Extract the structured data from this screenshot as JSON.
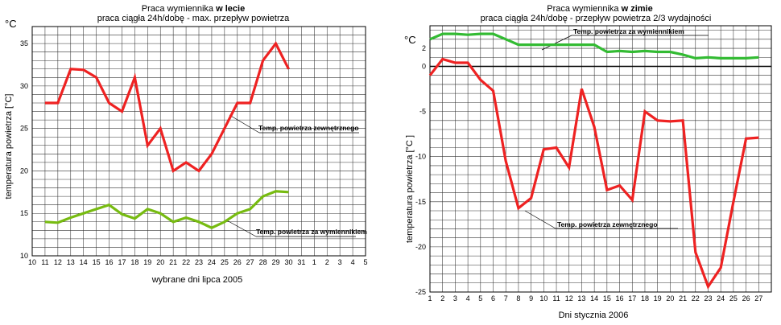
{
  "chart_data": [
    {
      "type": "line",
      "title_prefix": "Praca wymiennika ",
      "title_bold": "w lecie",
      "subtitle": "praca ciągła 24h/dobę - max. przepływ powietrza",
      "unit_label": "°C",
      "ylabel": "temperatura powietrza [°C]",
      "xlabel": "wybrane dni lipca 2005",
      "x_ticks": [
        "10",
        "11",
        "12",
        "13",
        "14",
        "15",
        "16",
        "17",
        "18",
        "19",
        "20",
        "21",
        "22",
        "23",
        "24",
        "25",
        "26",
        "27",
        "28",
        "29",
        "30",
        "31",
        "1",
        "2",
        "3",
        "4",
        "5"
      ],
      "y_ticks": [
        10,
        15,
        20,
        25,
        30,
        35
      ],
      "ylim": [
        10,
        37
      ],
      "grid": true,
      "series": [
        {
          "name": "Temp. powietrza zewnętrznego",
          "color": "#ee2222",
          "x": [
            11,
            12,
            13,
            14,
            15,
            16,
            17,
            18,
            19,
            20,
            21,
            22,
            23,
            24,
            25,
            26,
            27,
            28,
            29,
            30
          ],
          "values": [
            28,
            28,
            32,
            31.9,
            31,
            28,
            27,
            31,
            23,
            25,
            20,
            21,
            20,
            22,
            25,
            28,
            28,
            33,
            35,
            32
          ]
        },
        {
          "name": "Temp. powietrza za wymiennikiem",
          "color": "#77bb11",
          "x": [
            11,
            12,
            13,
            14,
            15,
            16,
            17,
            18,
            19,
            20,
            21,
            22,
            23,
            24,
            25,
            26,
            27,
            28,
            29,
            30
          ],
          "values": [
            14,
            13.9,
            14.5,
            15,
            15.5,
            16,
            14.9,
            14.4,
            15.5,
            15,
            14,
            14.5,
            14,
            13.3,
            14,
            15,
            15.5,
            17,
            17.6,
            17.5
          ]
        }
      ]
    },
    {
      "type": "line",
      "title_prefix": "Praca wymiennika ",
      "title_bold": "w zimie",
      "subtitle": "praca ciągła 24h/dobę - przepływ powietrza 2/3 wydajności",
      "unit_label": "°C",
      "ylabel": "temperatura powietrza [°C ]",
      "xlabel": "Dni stycznia 2006",
      "x_ticks": [
        "1",
        "2",
        "3",
        "4",
        "5",
        "6",
        "7",
        "8",
        "9",
        "10",
        "11",
        "12",
        "13",
        "14",
        "15",
        "16",
        "17",
        "18",
        "19",
        "20",
        "21",
        "22",
        "23",
        "24",
        "25",
        "26",
        "27"
      ],
      "y_ticks": [
        2,
        0,
        -5,
        -10,
        -15,
        -20,
        -25
      ],
      "ylim": [
        -25,
        4.5
      ],
      "grid": true,
      "series": [
        {
          "name": "Temp. powietrza za wymiennikiem",
          "color": "#33bb33",
          "x": [
            1,
            2,
            3,
            4,
            5,
            6,
            7,
            8,
            9,
            10,
            11,
            12,
            13,
            14,
            15,
            16,
            17,
            18,
            19,
            20,
            21,
            22,
            23,
            24,
            25,
            26,
            27
          ],
          "values": [
            3,
            3.6,
            3.6,
            3.5,
            3.6,
            3.6,
            3,
            2.4,
            2.4,
            2.4,
            2.4,
            2.4,
            2.4,
            2.4,
            1.6,
            1.7,
            1.6,
            1.7,
            1.6,
            1.6,
            1.3,
            0.9,
            1,
            0.9,
            0.9,
            0.9,
            1
          ]
        },
        {
          "name": "Temp. powietrza zewnętrznego",
          "color": "#ee2222",
          "x": [
            1,
            2,
            3,
            4,
            5,
            6,
            7,
            8,
            9,
            10,
            11,
            12,
            13,
            14,
            15,
            16,
            17,
            18,
            19,
            20,
            21,
            22,
            23,
            24,
            25,
            26,
            27
          ],
          "values": [
            -1,
            0.8,
            0.4,
            0.4,
            -1.5,
            -2.7,
            -10.5,
            -15.7,
            -14.6,
            -9.2,
            -9,
            -11.2,
            -2.5,
            -6.7,
            -13.7,
            -13.2,
            -14.8,
            -5,
            -6,
            -6.1,
            -6,
            -20.6,
            -24.4,
            -22.3,
            -15,
            -8,
            -7.9
          ]
        }
      ]
    }
  ]
}
